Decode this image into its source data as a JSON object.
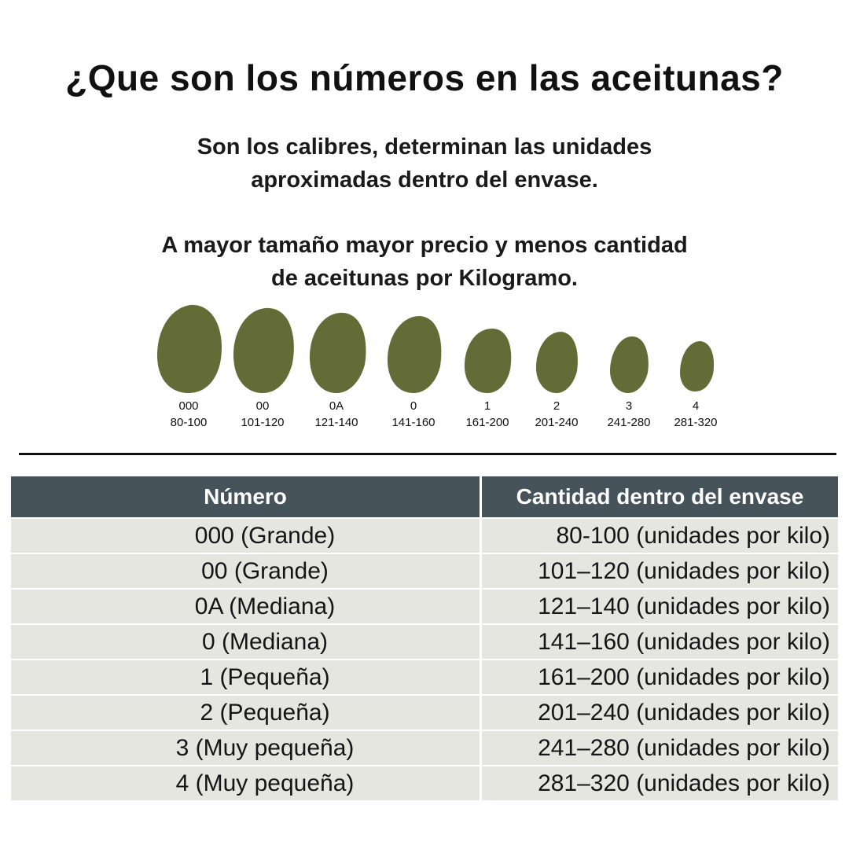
{
  "title": "¿Que son los números en las aceitunas?",
  "intro": {
    "line1": "Son los calibres, determinan las unidades",
    "line2": "aproximadas  dentro del envase.",
    "line3": "A mayor tamaño mayor precio y menos cantidad",
    "line4": "de aceitunas por Kilogramo."
  },
  "olive_color": "#636b36",
  "olives": [
    {
      "code": "000",
      "range": "80-100"
    },
    {
      "code": "00",
      "range": "101-120"
    },
    {
      "code": "0A",
      "range": "121-140"
    },
    {
      "code": "0",
      "range": "141-160"
    },
    {
      "code": "1",
      "range": "161-200"
    },
    {
      "code": "2",
      "range": "201-240"
    },
    {
      "code": "3",
      "range": "241-280"
    },
    {
      "code": "4",
      "range": "281-320"
    }
  ],
  "table": {
    "header_bg": "#46535a",
    "row_bg": "#e4e6df",
    "col1_header": "Número",
    "col2_header": "Cantidad dentro del envase",
    "rows": [
      {
        "numero": "000 (Grande)",
        "cantidad": "80-100 (unidades por kilo)"
      },
      {
        "numero": "00 (Grande)",
        "cantidad": "101–120 (unidades por kilo)"
      },
      {
        "numero": "0A (Mediana)",
        "cantidad": "121–140 (unidades por kilo)"
      },
      {
        "numero": "0 (Mediana)",
        "cantidad": "141–160 (unidades por kilo)"
      },
      {
        "numero": "1 (Pequeña)",
        "cantidad": "161–200 (unidades por kilo)"
      },
      {
        "numero": "2 (Pequeña)",
        "cantidad": "201–240 (unidades por kilo)"
      },
      {
        "numero": "3 (Muy pequeña)",
        "cantidad": "241–280 (unidades por kilo)"
      },
      {
        "numero": "4 (Muy pequeña)",
        "cantidad": "281–320 (unidades por kilo)"
      }
    ]
  }
}
